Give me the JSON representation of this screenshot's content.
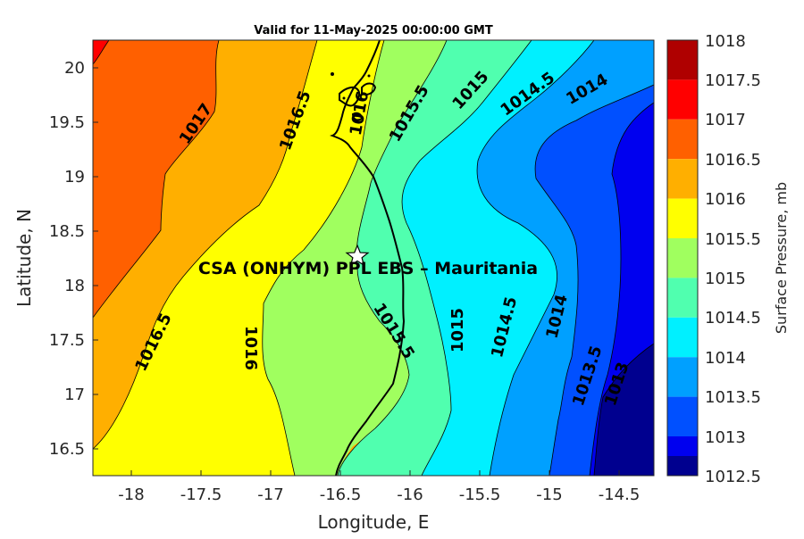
{
  "title": "Valid for 11-May-2025 00:00:00 GMT",
  "xlabel": "Longitude, E",
  "ylabel": "Latitude, N",
  "colorbar_label": "Surface Pressure, mb",
  "site_label": "CSA (ONHYM) PPL EBS  – Mauritania",
  "x_ticks": [
    "-18",
    "-17.5",
    "-17",
    "-16.5",
    "-16",
    "-15.5",
    "-15",
    "-14.5"
  ],
  "y_ticks": [
    "20",
    "19.5",
    "19",
    "18.5",
    "18",
    "17.5",
    "17",
    "16.5"
  ],
  "colorbar_ticks": [
    "1018",
    "1017.5",
    "1017",
    "1016.5",
    "1016",
    "1015.5",
    "1015",
    "1014.5",
    "1014",
    "1013.5",
    "1013",
    "1012.5"
  ],
  "contour_labels": [
    {
      "text": "1017"
    },
    {
      "text": "1016.5"
    },
    {
      "text": "1016"
    },
    {
      "text": "1015.5"
    },
    {
      "text": "1015"
    },
    {
      "text": "1014.5"
    },
    {
      "text": "1014"
    },
    {
      "text": "1016.5"
    },
    {
      "text": "1016"
    },
    {
      "text": "1015.5"
    },
    {
      "text": "1015"
    },
    {
      "text": "1014.5"
    },
    {
      "text": "1014"
    },
    {
      "text": "1013.5"
    },
    {
      "text": "1013"
    }
  ],
  "chart_data": {
    "type": "contour-map",
    "variable": "Surface Pressure, mb",
    "xlim": [
      -18.25,
      -14.25
    ],
    "ylim": [
      16.25,
      20.25
    ],
    "levels": [
      1012.5,
      1013,
      1013.5,
      1014,
      1014.5,
      1015,
      1015.5,
      1016,
      1016.5,
      1017,
      1017.5,
      1018
    ],
    "level_colors": [
      "#00008f",
      "#0000ef",
      "#0050ff",
      "#00a0ff",
      "#00f0ff",
      "#50ffaf",
      "#a0ff5f",
      "#ffff00",
      "#ffaf00",
      "#ff6000",
      "#ff0000",
      "#af0000"
    ],
    "site": {
      "lon": -16.35,
      "lat": 18.28,
      "marker": "star"
    }
  }
}
